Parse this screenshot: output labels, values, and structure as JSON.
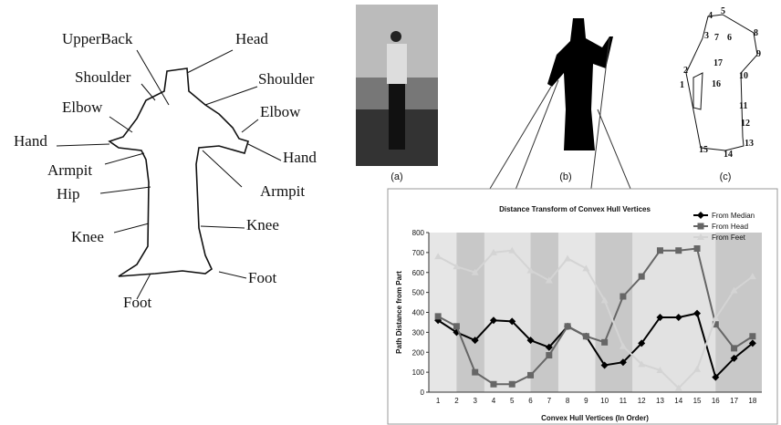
{
  "body_diagram": {
    "labels": [
      "UpperBack",
      "Head",
      "Shoulder",
      "Shoulder",
      "Elbow",
      "Elbow",
      "Hand",
      "Hand",
      "Armpit",
      "Armpit",
      "Hip",
      "Knee",
      "Knee",
      "Foot",
      "Foot"
    ]
  },
  "panels": {
    "captions": [
      "(a)",
      "(b)",
      "(c)"
    ],
    "hull_numbers": [
      "1",
      "2",
      "3",
      "4",
      "5",
      "6",
      "7",
      "8",
      "9",
      "10",
      "11",
      "12",
      "13",
      "14",
      "15",
      "16",
      "17"
    ]
  },
  "chart_data": {
    "type": "line",
    "title": "Distance Transform of Convex Hull Vertices",
    "x_label": "Convex Hull Vertices (In Order)",
    "y_label": "Path Distance from Part",
    "categories": [
      "1",
      "2",
      "3",
      "4",
      "5",
      "6",
      "7",
      "8",
      "9",
      "10",
      "11",
      "12",
      "13",
      "14",
      "15",
      "16",
      "17",
      "18"
    ],
    "ylim": [
      0,
      800
    ],
    "yticks": [
      0,
      100,
      200,
      300,
      400,
      500,
      600,
      700,
      800
    ],
    "legend": "top-right",
    "series": [
      {
        "name": "From Median",
        "color": "#000000",
        "marker": "diamond",
        "values": [
          360,
          300,
          260,
          360,
          355,
          260,
          225,
          330,
          280,
          135,
          150,
          245,
          375,
          375,
          395,
          75,
          170,
          245
        ]
      },
      {
        "name": "From Head",
        "color": "#666666",
        "marker": "square",
        "values": [
          380,
          330,
          100,
          40,
          40,
          85,
          185,
          330,
          280,
          250,
          480,
          580,
          710,
          710,
          720,
          340,
          220,
          280
        ]
      },
      {
        "name": "From Feet",
        "color": "#d4d4d4",
        "marker": "triangle",
        "values": [
          680,
          630,
          600,
          700,
          710,
          610,
          560,
          670,
          620,
          460,
          230,
          140,
          110,
          20,
          115,
          370,
          510,
          580
        ]
      }
    ]
  }
}
